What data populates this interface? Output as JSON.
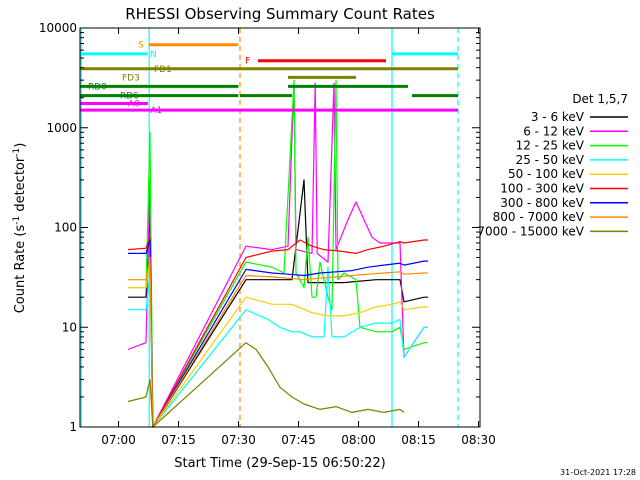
{
  "chart_data": {
    "type": "line",
    "title": "RHESSI Observing Summary Count Rates",
    "xlabel": "Start Time (29-Sep-15 06:50:22)",
    "ylabel_main": "Count Rate (s",
    "ylabel_sup": "-1",
    "ylabel_tail": " detector",
    "ylabel_sup2": "-1",
    "ylabel_end": ")",
    "x_unit": "minutes after 06:50:22",
    "xlim": [
      0,
      100
    ],
    "ylim": [
      1,
      10000
    ],
    "yscale": "log",
    "x_ticks": [
      {
        "value": 9.63,
        "label": "07:00"
      },
      {
        "value": 24.63,
        "label": "07:15"
      },
      {
        "value": 39.63,
        "label": "07:30"
      },
      {
        "value": 54.63,
        "label": "07:45"
      },
      {
        "value": 69.63,
        "label": "08:00"
      },
      {
        "value": 84.63,
        "label": "08:15"
      },
      {
        "value": 99.63,
        "label": "08:30"
      }
    ],
    "y_ticks": [
      {
        "value": 1,
        "label": "1"
      },
      {
        "value": 10,
        "label": "10"
      },
      {
        "value": 100,
        "label": "100"
      },
      {
        "value": 1000,
        "label": "1000"
      },
      {
        "value": 10000,
        "label": "10000"
      }
    ],
    "legend_title": "Det 1,5,7",
    "legend_position": "right",
    "series": [
      {
        "name": "3 - 6 keV",
        "color": "#000000",
        "points": [
          [
            12,
            20
          ],
          [
            16.5,
            20
          ],
          [
            17.5,
            150
          ],
          [
            18.2,
            0
          ],
          [
            41.5,
            30
          ],
          [
            50,
            30
          ],
          [
            53,
            30
          ],
          [
            56,
            300
          ],
          [
            57,
            28
          ],
          [
            66,
            28
          ],
          [
            74,
            30
          ],
          [
            80,
            30
          ],
          [
            81,
            18
          ],
          [
            86,
            20
          ],
          [
            87,
            20
          ]
        ]
      },
      {
        "name": "6 - 12 keV",
        "color": "#ff00ff",
        "points": [
          [
            12,
            6
          ],
          [
            16.5,
            7
          ],
          [
            17.5,
            300
          ],
          [
            18.2,
            0
          ],
          [
            41.5,
            65
          ],
          [
            48,
            60
          ],
          [
            52,
            65
          ],
          [
            53.5,
            2800
          ],
          [
            54,
            60
          ],
          [
            58,
            55
          ],
          [
            58.8,
            2800
          ],
          [
            59.3,
            55
          ],
          [
            62,
            45
          ],
          [
            63.5,
            2800
          ],
          [
            64,
            60
          ],
          [
            67,
            120
          ],
          [
            69,
            180
          ],
          [
            71,
            120
          ],
          [
            73,
            80
          ],
          [
            75,
            70
          ],
          [
            80,
            70
          ],
          [
            81,
            5
          ],
          [
            86,
            10
          ],
          [
            87,
            10
          ]
        ]
      },
      {
        "name": "12 - 25 keV",
        "color": "#00ff00",
        "points": [
          [
            12,
            25
          ],
          [
            16.5,
            25
          ],
          [
            17.5,
            900
          ],
          [
            18.2,
            0
          ],
          [
            41.5,
            45
          ],
          [
            48,
            40
          ],
          [
            51,
            35
          ],
          [
            53.5,
            3000
          ],
          [
            54,
            35
          ],
          [
            56,
            25
          ],
          [
            57,
            80
          ],
          [
            58,
            20
          ],
          [
            59,
            20
          ],
          [
            60,
            45
          ],
          [
            62,
            20
          ],
          [
            63,
            15
          ],
          [
            64,
            3000
          ],
          [
            64.5,
            30
          ],
          [
            66,
            35
          ],
          [
            69,
            30
          ],
          [
            70,
            10
          ],
          [
            74,
            9
          ],
          [
            78,
            9
          ],
          [
            80,
            10
          ],
          [
            81,
            6
          ],
          [
            86,
            7
          ],
          [
            87,
            7
          ]
        ]
      },
      {
        "name": "25 - 50 keV",
        "color": "#00ffff",
        "points": [
          [
            12,
            15
          ],
          [
            16.5,
            15
          ],
          [
            17.5,
            35
          ],
          [
            18.2,
            0
          ],
          [
            41.5,
            15
          ],
          [
            47,
            12
          ],
          [
            50,
            10
          ],
          [
            53,
            9
          ],
          [
            55,
            9
          ],
          [
            58,
            8
          ],
          [
            61,
            8
          ],
          [
            62,
            40
          ],
          [
            63,
            8
          ],
          [
            66,
            8
          ],
          [
            70,
            10
          ],
          [
            74,
            11
          ],
          [
            78,
            11
          ],
          [
            80,
            12
          ],
          [
            81,
            5
          ],
          [
            86,
            10
          ],
          [
            87,
            10
          ]
        ]
      },
      {
        "name": "50 - 100 keV",
        "color": "#ffcc00",
        "points": [
          [
            12,
            25
          ],
          [
            16.5,
            25
          ],
          [
            17.5,
            45
          ],
          [
            18.2,
            0
          ],
          [
            41.5,
            20
          ],
          [
            48,
            17
          ],
          [
            53,
            17
          ],
          [
            58,
            14
          ],
          [
            62,
            13
          ],
          [
            66,
            13
          ],
          [
            70,
            14
          ],
          [
            74,
            16
          ],
          [
            78,
            17
          ],
          [
            80,
            18
          ],
          [
            81,
            15
          ],
          [
            86,
            16
          ],
          [
            87,
            16
          ]
        ]
      },
      {
        "name": "100 - 300 keV",
        "color": "#ff0000",
        "points": [
          [
            12,
            60
          ],
          [
            16.5,
            62
          ],
          [
            17.5,
            80
          ],
          [
            18.2,
            0
          ],
          [
            41.5,
            50
          ],
          [
            48,
            58
          ],
          [
            52,
            60
          ],
          [
            55,
            75
          ],
          [
            58,
            65
          ],
          [
            61,
            60
          ],
          [
            65,
            58
          ],
          [
            69,
            55
          ],
          [
            72,
            60
          ],
          [
            76,
            65
          ],
          [
            80,
            72
          ],
          [
            81,
            70
          ],
          [
            86,
            75
          ],
          [
            87,
            75
          ]
        ]
      },
      {
        "name": "300 - 800 keV",
        "color": "#0000ff",
        "points": [
          [
            12,
            55
          ],
          [
            16.5,
            55
          ],
          [
            17.5,
            75
          ],
          [
            18.2,
            0
          ],
          [
            41.5,
            38
          ],
          [
            48,
            35
          ],
          [
            52,
            34
          ],
          [
            56,
            33
          ],
          [
            60,
            35
          ],
          [
            64,
            36
          ],
          [
            68,
            37
          ],
          [
            72,
            40
          ],
          [
            76,
            42
          ],
          [
            80,
            44
          ],
          [
            81,
            42
          ],
          [
            86,
            46
          ],
          [
            87,
            46
          ]
        ]
      },
      {
        "name": "800 - 7000 keV",
        "color": "#ff8c00",
        "points": [
          [
            12,
            30
          ],
          [
            16.5,
            30
          ],
          [
            17.5,
            50
          ],
          [
            18.2,
            0
          ],
          [
            41.5,
            33
          ],
          [
            48,
            32
          ],
          [
            52,
            31
          ],
          [
            56,
            30
          ],
          [
            60,
            31
          ],
          [
            64,
            32
          ],
          [
            68,
            33
          ],
          [
            72,
            34
          ],
          [
            76,
            35
          ],
          [
            80,
            36
          ],
          [
            81,
            34
          ],
          [
            86,
            35
          ],
          [
            87,
            35
          ]
        ]
      },
      {
        "name": "7000 - 15000 keV",
        "color": "#808000",
        "points": [
          [
            12,
            1.8
          ],
          [
            16.5,
            2
          ],
          [
            17.5,
            3
          ],
          [
            18.2,
            0
          ],
          [
            41.5,
            7
          ],
          [
            44,
            6
          ],
          [
            47,
            4
          ],
          [
            50,
            2.5
          ],
          [
            53,
            2
          ],
          [
            56,
            1.7
          ],
          [
            60,
            1.5
          ],
          [
            64,
            1.6
          ],
          [
            68,
            1.4
          ],
          [
            72,
            1.5
          ],
          [
            76,
            1.4
          ],
          [
            80,
            1.5
          ],
          [
            81,
            1.4
          ]
        ]
      }
    ],
    "flag_bars": [
      {
        "label": "S",
        "color": "#ff8c00",
        "y": 6800,
        "x1": 17.2,
        "x2": 39.6,
        "label_x": 14.5
      },
      {
        "label": "N",
        "color": "#00ffff",
        "y": 5500,
        "x1": 0,
        "x2": 16.8,
        "label_x": 17.5
      },
      {
        "label": "N",
        "color": "#00ffff",
        "y": 5500,
        "x1": 78,
        "x2": 94.5,
        "label_x": 0
      },
      {
        "label": "F",
        "color": "#ff0000",
        "y": 4700,
        "x1": 44.5,
        "x2": 76.5,
        "label_x": 41.3
      },
      {
        "label": "FD1",
        "color": "#808000",
        "y": 3900,
        "x1": 0,
        "x2": 94.5,
        "label_x": 18.5
      },
      {
        "label": "FD3",
        "color": "#808000",
        "y": 3200,
        "x1": 52,
        "x2": 69,
        "label_x": 10.5
      },
      {
        "label": "RD0",
        "color": "#008000",
        "y": 2600,
        "x1": 0,
        "x2": 39.6,
        "label_x": 2
      },
      {
        "label": "RD0",
        "color": "#008000",
        "y": 2600,
        "x1": 52,
        "x2": 82,
        "label_x": 0
      },
      {
        "label": "RD6",
        "color": "#008000",
        "y": 2100,
        "x1": 0,
        "x2": 39.6,
        "label_x": 10
      },
      {
        "label": "RD6",
        "color": "#008000",
        "y": 2100,
        "x1": 40,
        "x2": 53,
        "label_x": 0
      },
      {
        "label": "RD6",
        "color": "#008000",
        "y": 2100,
        "x1": 83,
        "x2": 94.5,
        "label_x": 0
      },
      {
        "label": "A0",
        "color": "#ff00ff",
        "y": 1750,
        "x1": 0,
        "x2": 17,
        "label_x": 12
      },
      {
        "label": "A1",
        "color": "#ff00ff",
        "y": 1500,
        "x1": 0,
        "x2": 94.5,
        "label_x": 17.6
      }
    ],
    "vlines": [
      {
        "x": 0.3,
        "color": "#00ffff",
        "style": "solid"
      },
      {
        "x": 17.3,
        "color": "#00ffff",
        "style": "solid"
      },
      {
        "x": 40,
        "color": "#ff8c00",
        "style": "dashed"
      },
      {
        "x": 78,
        "color": "#00ffff",
        "style": "solid"
      },
      {
        "x": 94.5,
        "color": "#00ffff",
        "style": "dashed"
      }
    ],
    "footer_date": "31-Oct-2021 17:28"
  }
}
